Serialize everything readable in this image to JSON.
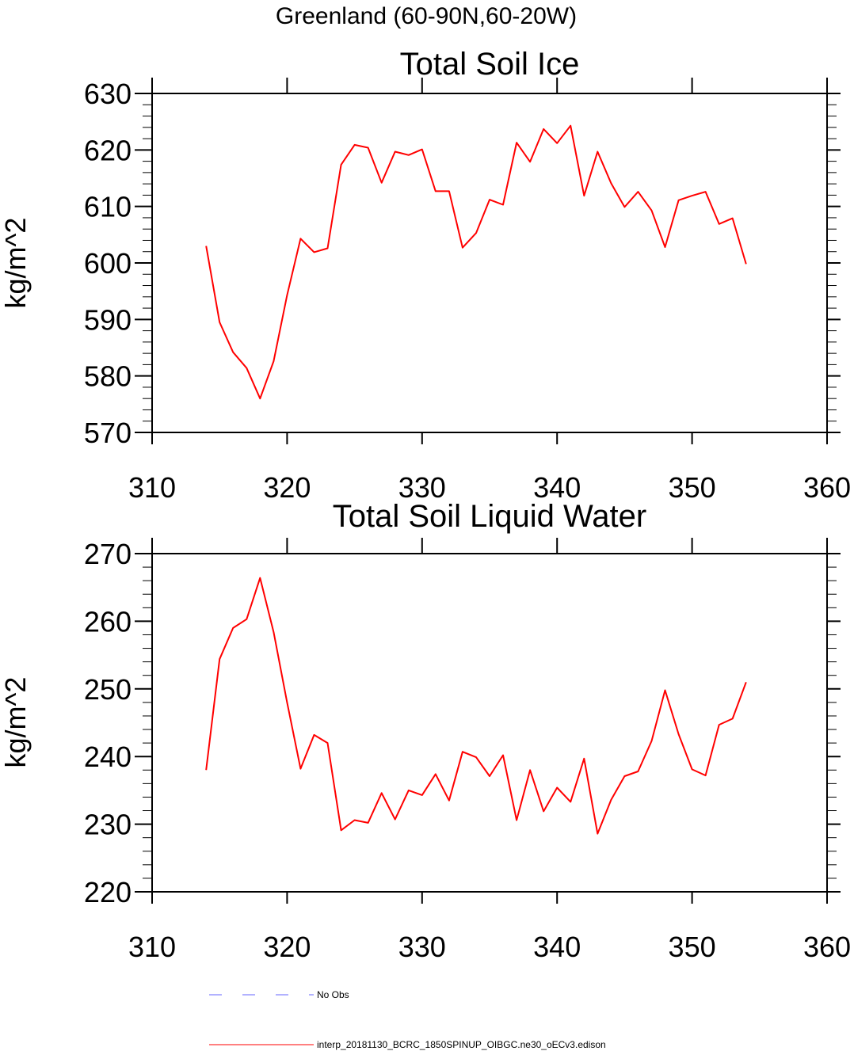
{
  "figure": {
    "supertitle": "Greenland (60-90N,60-20W)"
  },
  "chart_data": [
    {
      "type": "line",
      "title": "Total Soil Ice",
      "xlabel": "",
      "ylabel": "kg/m^2",
      "xlim": [
        310,
        360
      ],
      "ylim": [
        570,
        630
      ],
      "xticks": [
        310,
        320,
        330,
        340,
        350,
        360
      ],
      "xtick_labels": [
        "310",
        "320",
        "330",
        "340",
        "350",
        "360"
      ],
      "yticks": [
        570,
        580,
        590,
        600,
        610,
        620,
        630
      ],
      "ytick_labels": [
        "570",
        "580",
        "590",
        "600",
        "610",
        "620",
        "630"
      ],
      "grid": false,
      "series": [
        {
          "name": "interp_20181130_BCRC_1850SPINUP_OIBGC.ne30_oECv3.edison",
          "color": "#ff0000",
          "x": [
            314,
            315,
            316,
            317,
            318,
            319,
            320,
            321,
            322,
            323,
            324,
            325,
            326,
            327,
            328,
            329,
            330,
            331,
            332,
            333,
            334,
            335,
            336,
            337,
            338,
            339,
            340,
            341,
            342,
            343,
            344,
            345,
            346,
            347,
            348,
            349,
            350,
            351,
            352,
            353,
            354
          ],
          "y": [
            603.0,
            589.5,
            584.2,
            581.4,
            576.0,
            582.6,
            594.3,
            604.3,
            601.9,
            602.6,
            617.4,
            620.9,
            620.4,
            614.2,
            619.7,
            619.1,
            620.1,
            612.7,
            612.7,
            602.7,
            605.3,
            611.2,
            610.3,
            621.3,
            617.9,
            623.7,
            621.2,
            624.3,
            611.9,
            619.7,
            614.1,
            609.9,
            612.6,
            609.3,
            602.8,
            611.1,
            611.9,
            612.6,
            606.9,
            607.9,
            599.8
          ]
        }
      ]
    },
    {
      "type": "line",
      "title": "Total Soil Liquid Water",
      "xlabel": "",
      "ylabel": "kg/m^2",
      "xlim": [
        310,
        360
      ],
      "ylim": [
        220,
        270
      ],
      "xticks": [
        310,
        320,
        330,
        340,
        350,
        360
      ],
      "xtick_labels": [
        "310",
        "320",
        "330",
        "340",
        "350",
        "360"
      ],
      "yticks": [
        220,
        230,
        240,
        250,
        260,
        270
      ],
      "ytick_labels": [
        "220",
        "230",
        "240",
        "250",
        "260",
        "270"
      ],
      "grid": false,
      "series": [
        {
          "name": "interp_20181130_BCRC_1850SPINUP_OIBGC.ne30_oECv3.edison",
          "color": "#ff0000",
          "x": [
            314,
            315,
            316,
            317,
            318,
            319,
            320,
            321,
            322,
            323,
            324,
            325,
            326,
            327,
            328,
            329,
            330,
            331,
            332,
            333,
            334,
            335,
            336,
            337,
            338,
            339,
            340,
            341,
            342,
            343,
            344,
            345,
            346,
            347,
            348,
            349,
            350,
            351,
            352,
            353,
            354
          ],
          "y": [
            238.0,
            254.4,
            259.0,
            260.3,
            266.4,
            258.4,
            248.0,
            238.2,
            243.2,
            242.0,
            229.1,
            230.6,
            230.2,
            234.6,
            230.7,
            235.0,
            234.3,
            237.4,
            233.5,
            240.7,
            239.9,
            237.1,
            240.2,
            230.6,
            238.0,
            231.9,
            235.4,
            233.3,
            239.7,
            228.6,
            233.6,
            237.1,
            237.8,
            242.3,
            249.8,
            243.3,
            238.1,
            237.2,
            244.7,
            245.6,
            251.0
          ]
        }
      ]
    }
  ],
  "legend": {
    "entries": [
      {
        "label": "No Obs",
        "color": "#6666ff",
        "style": "dashed"
      },
      {
        "label": "interp_20181130_BCRC_1850SPINUP_OIBGC.ne30_oECv3.edison",
        "color": "#ff0000",
        "style": "solid"
      }
    ]
  }
}
